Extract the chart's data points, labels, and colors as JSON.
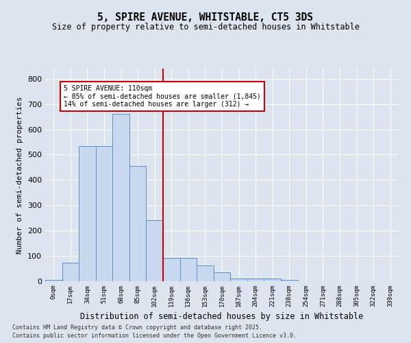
{
  "title": "5, SPIRE AVENUE, WHITSTABLE, CT5 3DS",
  "subtitle": "Size of property relative to semi-detached houses in Whitstable",
  "xlabel": "Distribution of semi-detached houses by size in Whitstable",
  "ylabel": "Number of semi-detached properties",
  "bar_color": "#c8d8ee",
  "bar_edge_color": "#5b8ec4",
  "background_color": "#dce4f0",
  "grid_color": "#ffffff",
  "property_line_color": "#cc0000",
  "annotation_title": "5 SPIRE AVENUE: 110sqm",
  "annotation_line1": "← 85% of semi-detached houses are smaller (1,845)",
  "annotation_line2": "14% of semi-detached houses are larger (312) →",
  "annotation_box_color": "#ffffff",
  "annotation_box_edge": "#cc0000",
  "categories": [
    "0sqm",
    "17sqm",
    "34sqm",
    "51sqm",
    "68sqm",
    "85sqm",
    "102sqm",
    "119sqm",
    "136sqm",
    "153sqm",
    "170sqm",
    "187sqm",
    "204sqm",
    "221sqm",
    "238sqm",
    "254sqm",
    "271sqm",
    "288sqm",
    "305sqm",
    "322sqm",
    "339sqm"
  ],
  "bar_heights": [
    5,
    72,
    535,
    535,
    660,
    455,
    240,
    93,
    93,
    62,
    35,
    10,
    10,
    10,
    5,
    0,
    0,
    0,
    0,
    0,
    0
  ],
  "ylim": [
    0,
    840
  ],
  "yticks": [
    0,
    100,
    200,
    300,
    400,
    500,
    600,
    700,
    800
  ],
  "property_line_x": 6.5,
  "footnote1": "Contains HM Land Registry data © Crown copyright and database right 2025.",
  "footnote2": "Contains public sector information licensed under the Open Government Licence v3.0."
}
